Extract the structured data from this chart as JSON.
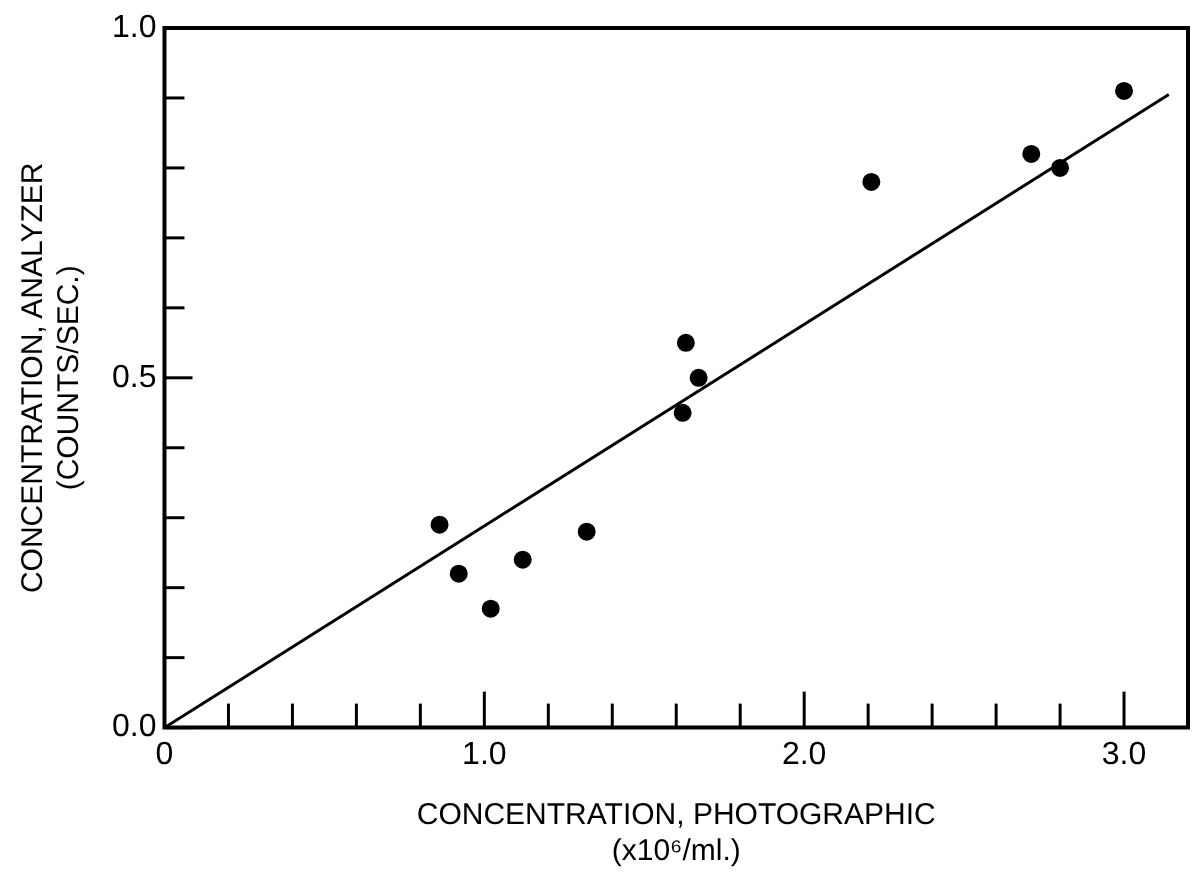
{
  "chart_data": {
    "type": "scatter",
    "xlabel": "CONCENTRATION, PHOTOGRAPHIC\n(x10⁶/ml.)",
    "ylabel": "CONCENTRATION, ANALYZER\n(COUNTS/SEC.)",
    "xlim": [
      0,
      3.2
    ],
    "ylim": [
      0,
      1.0
    ],
    "xticks": [
      0,
      {
        "value": 0.2,
        "label": null
      },
      {
        "value": 0.4,
        "label": null
      },
      {
        "value": 0.6,
        "label": null
      },
      {
        "value": 0.8,
        "label": null
      },
      {
        "value": 1,
        "label": "1.0"
      },
      {
        "value": 1.2,
        "label": null
      },
      {
        "value": 1.4,
        "label": null
      },
      {
        "value": 1.6,
        "label": null
      },
      {
        "value": 1.8,
        "label": null
      },
      {
        "value": 2,
        "label": "2.0"
      },
      {
        "value": 2.2,
        "label": null
      },
      {
        "value": 2.4,
        "label": null
      },
      {
        "value": 2.6,
        "label": null
      },
      {
        "value": 2.8,
        "label": null
      },
      {
        "value": 3,
        "label": "3.0"
      }
    ],
    "yticks": [
      {
        "value": 0,
        "label": "0.0"
      },
      {
        "value": 0.1,
        "label": null
      },
      {
        "value": 0.2,
        "label": null
      },
      {
        "value": 0.3,
        "label": null
      },
      {
        "value": 0.4,
        "label": null
      },
      0.5,
      {
        "value": 0.6,
        "label": null
      },
      {
        "value": 0.7,
        "label": null
      },
      {
        "value": 0.8,
        "label": null
      },
      {
        "value": 0.9,
        "label": null
      },
      {
        "value": 1,
        "label": "1.0"
      }
    ],
    "grid": false,
    "marker": "circle",
    "series": [
      {
        "color": "#000000",
        "x": [
          0.86,
          0.92,
          1.02,
          1.12,
          1.32,
          1.62,
          1.63,
          1.67,
          2.21,
          2.71,
          2.8,
          3.0
        ],
        "values": [
          0.29,
          0.22,
          0.17,
          0.24,
          0.28,
          0.45,
          0.55,
          0.5,
          0.78,
          0.82,
          0.8,
          0.91
        ]
      },
      {
        "type": "line",
        "color": "#000000",
        "x": [
          0,
          3.14
        ],
        "values": [
          0,
          0.905
        ],
        "marker": "none",
        "line_style": "solid"
      }
    ]
  }
}
